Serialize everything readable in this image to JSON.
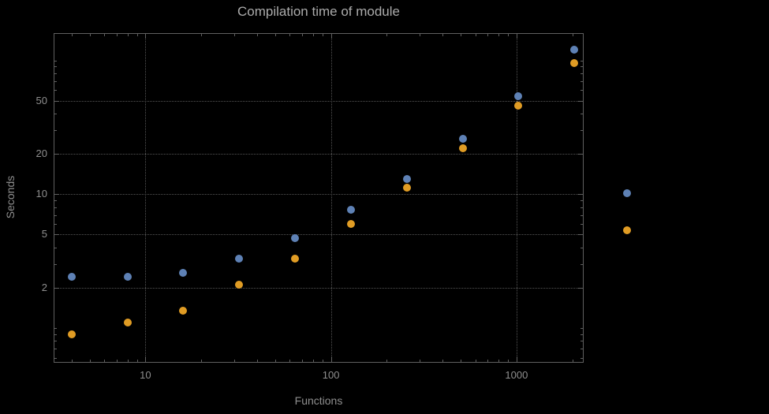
{
  "colors": {
    "background": "#000000",
    "frame": "#606060",
    "grid": "#545454",
    "title_text": "#ababab",
    "label_text": "#8f8f8f",
    "tick_text": "#8f8f8f",
    "series_blue": "#5e81b5",
    "series_orange": "#e09c24"
  },
  "chart_data": {
    "type": "scatter",
    "title": "Compilation time of module",
    "xlabel": "Functions",
    "ylabel": "Seconds",
    "xscale": "log",
    "yscale": "log",
    "xlim": [
      3.2,
      2300
    ],
    "ylim": [
      0.55,
      160
    ],
    "grid": "dotted",
    "legend_position": "right",
    "x_ticks": [
      {
        "value": 10,
        "label": "10"
      },
      {
        "value": 100,
        "label": "100"
      },
      {
        "value": 1000,
        "label": "1000"
      }
    ],
    "y_ticks": [
      {
        "value": 2,
        "label": "2"
      },
      {
        "value": 5,
        "label": "5"
      },
      {
        "value": 10,
        "label": "10"
      },
      {
        "value": 20,
        "label": "20"
      },
      {
        "value": 50,
        "label": "50"
      }
    ],
    "x": [
      4,
      8,
      16,
      32,
      64,
      128,
      256,
      512,
      1024,
      2048
    ],
    "series": [
      {
        "name": "series-blue",
        "color": "#5e81b5",
        "values": [
          2.4,
          2.4,
          2.6,
          3.3,
          4.7,
          7.7,
          13,
          26,
          54,
          120
        ]
      },
      {
        "name": "series-orange",
        "color": "#e09c24",
        "values": [
          0.9,
          1.1,
          1.35,
          2.1,
          3.3,
          6,
          11.2,
          22,
          46,
          95
        ]
      }
    ]
  }
}
